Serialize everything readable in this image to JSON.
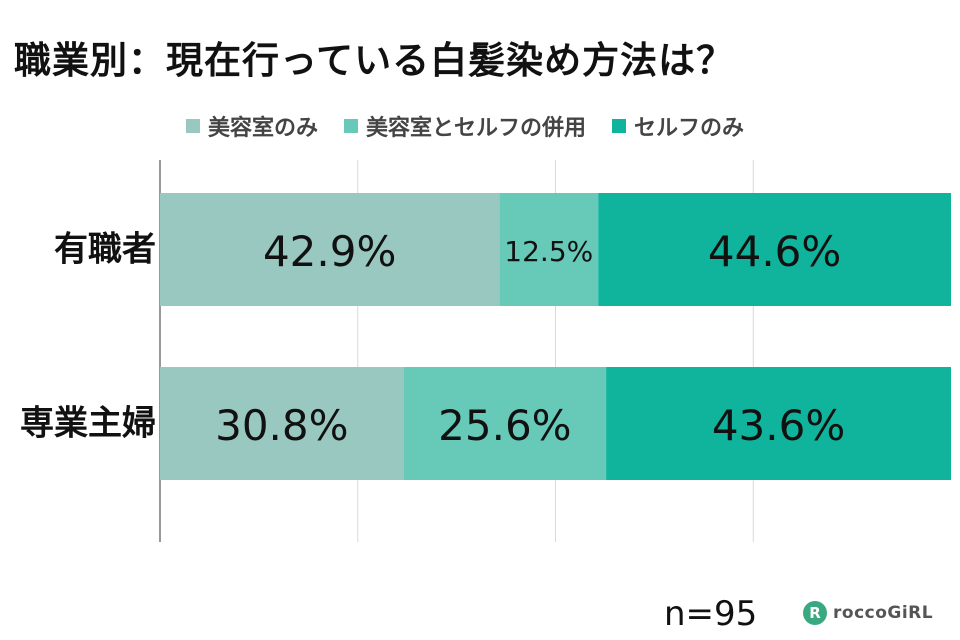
{
  "title": "職業別：現在行っている白髪染め方法は？",
  "sample_size": "n=95",
  "brand": {
    "mark": "R",
    "name": "roccoGiRL"
  },
  "chart_data": {
    "type": "bar",
    "orientation": "horizontal",
    "stacked": true,
    "percent": true,
    "categories": [
      "有職者",
      "専業主婦"
    ],
    "series": [
      {
        "name": "美容室のみ",
        "values": [
          42.9,
          30.8
        ],
        "labels": [
          "42.9%",
          "30.8%"
        ],
        "color": "#99c8c0"
      },
      {
        "name": "美容室とセルフの併用",
        "values": [
          12.5,
          25.6
        ],
        "labels": [
          "12.5%",
          "25.6%"
        ],
        "color": "#67cab9"
      },
      {
        "name": "セルフのみ",
        "values": [
          44.6,
          43.6
        ],
        "labels": [
          "44.6%",
          "43.6%"
        ],
        "color": "#10b39b"
      }
    ],
    "xlim": [
      0,
      100
    ],
    "grid": true,
    "legend_position": "top"
  }
}
